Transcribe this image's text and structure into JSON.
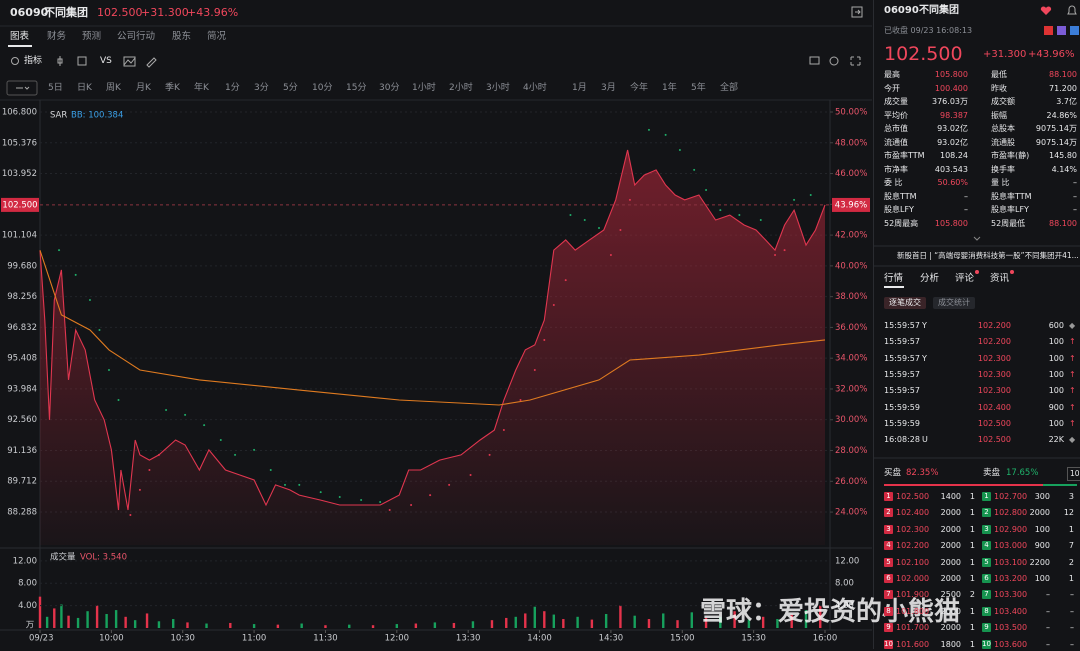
{
  "header": {
    "code": "06090",
    "name": "不同集团",
    "price": "102.500",
    "change": "+31.300",
    "change_pct": "+43.96%"
  },
  "tabs": [
    "图表",
    "财务",
    "预测",
    "公司行动",
    "股东",
    "简况"
  ],
  "toolbar": {
    "indicator": "指标",
    "compare": "VS"
  },
  "periods": [
    "5日",
    "日K",
    "周K",
    "月K",
    "季K",
    "年K",
    "1分",
    "3分",
    "5分",
    "10分",
    "15分",
    "30分",
    "1小时",
    "2小时",
    "3小时",
    "4小时",
    "1月",
    "3月",
    "今年",
    "1年",
    "5年",
    "全部"
  ],
  "chart_data": [
    {
      "type": "line",
      "indicator_labels": [
        "SAR",
        "BB: 100.384"
      ],
      "grid": true,
      "xlim": [
        0,
        330
      ],
      "ylim": [
        86.76,
        107.17
      ],
      "y2lim": [
        21.86,
        50.52
      ],
      "yticks": [
        {
          "value": 106.8,
          "label": "106.800"
        },
        {
          "value": 105.376,
          "label": "105.376"
        },
        {
          "value": 103.952,
          "label": "103.952"
        },
        {
          "value": 101.104,
          "label": "101.104"
        },
        {
          "value": 99.68,
          "label": "99.680"
        },
        {
          "value": 98.256,
          "label": "98.256"
        },
        {
          "value": 96.832,
          "label": "96.832"
        },
        {
          "value": 95.408,
          "label": "95.408"
        },
        {
          "value": 93.984,
          "label": "93.984"
        },
        {
          "value": 92.56,
          "label": "92.560"
        },
        {
          "value": 91.136,
          "label": "91.136"
        },
        {
          "value": 89.712,
          "label": "89.712"
        },
        {
          "value": 88.288,
          "label": "88.288"
        }
      ],
      "y2ticks": [
        {
          "value": 50,
          "label": "50.00%"
        },
        {
          "value": 48,
          "label": "48.00%"
        },
        {
          "value": 46,
          "label": "46.00%"
        },
        {
          "value": 44,
          "label": "44.00%"
        },
        {
          "value": 42,
          "label": "42.00%"
        },
        {
          "value": 40,
          "label": "40.00%"
        },
        {
          "value": 38,
          "label": "38.00%"
        },
        {
          "value": 36,
          "label": "36.00%"
        },
        {
          "value": 34,
          "label": "34.00%"
        },
        {
          "value": 32,
          "label": "32.00%"
        },
        {
          "value": 30,
          "label": "30.00%"
        },
        {
          "value": 28,
          "label": "28.00%"
        },
        {
          "value": 26,
          "label": "26.00%"
        },
        {
          "value": 24,
          "label": "24.00%"
        }
      ],
      "price_tag": {
        "value": 102.5,
        "label": "102.500"
      },
      "pct_tag": {
        "value": 43.96,
        "label": "43.96%"
      },
      "series": [
        {
          "style": "line",
          "area": true,
          "color": "#e0364f",
          "x": [
            0,
            2,
            4,
            6,
            9,
            12,
            15,
            19,
            23,
            27,
            30,
            33,
            34,
            37,
            40,
            42,
            46,
            50,
            57,
            61,
            67,
            71,
            78,
            84,
            90,
            95,
            99,
            105,
            109,
            118,
            126,
            135,
            143,
            151,
            155,
            160,
            168,
            177,
            185,
            191,
            195,
            200,
            204,
            208,
            212,
            216,
            221,
            225,
            231,
            237,
            242,
            244,
            247,
            250,
            254,
            259,
            263,
            267,
            271,
            277,
            284,
            290,
            296,
            301,
            305,
            309,
            313,
            317,
            322,
            326,
            330
          ],
          "values": [
            100.4,
            97.17,
            92.55,
            98.1,
            99.49,
            94.4,
            96.71,
            95.79,
            93.47,
            92.55,
            91.16,
            88.38,
            90.23,
            88.38,
            91.62,
            90.93,
            90.69,
            90.93,
            91.62,
            91.39,
            90.23,
            91.16,
            90.23,
            90.0,
            89.77,
            88.61,
            89.54,
            89.31,
            89.07,
            88.84,
            88.61,
            88.61,
            88.61,
            89.07,
            90.23,
            90.23,
            90.69,
            90.93,
            91.62,
            92.08,
            93.47,
            94.86,
            95.79,
            96.02,
            97.17,
            100.41,
            100.88,
            100.41,
            100.88,
            101.34,
            102.73,
            103.65,
            105.04,
            103.42,
            103.88,
            104.12,
            103.42,
            102.96,
            102.73,
            102.96,
            101.8,
            102.03,
            101.57,
            101.34,
            100.88,
            100.41,
            101.57,
            102.26,
            100.64,
            101.34,
            102.5
          ]
        },
        {
          "style": "line",
          "area": false,
          "color": "#e07b20",
          "x": [
            0,
            9,
            21,
            29,
            42,
            67,
            109,
            151,
            193,
            206,
            235,
            248,
            277,
            311,
            330
          ],
          "values": [
            100.4,
            97.41,
            96.71,
            95.79,
            94.86,
            94.4,
            93.93,
            93.47,
            93.24,
            93.47,
            94.4,
            95.32,
            95.55,
            96.02,
            96.25
          ]
        },
        {
          "style": "dot",
          "color": "#1fae6a",
          "x": [
            8,
            15,
            21,
            25,
            29,
            33,
            53,
            61,
            69,
            76,
            82,
            90,
            97,
            103,
            109,
            118,
            126,
            135,
            143,
            223,
            229,
            235,
            256,
            263,
            269,
            275,
            280,
            286,
            294,
            303,
            317,
            324
          ],
          "values": [
            100.41,
            99.26,
            98.1,
            96.71,
            94.86,
            93.47,
            93.01,
            92.78,
            92.31,
            91.62,
            90.93,
            91.16,
            90.23,
            89.54,
            89.54,
            89.21,
            88.98,
            88.84,
            88.75,
            102.03,
            101.8,
            101.43,
            105.97,
            105.74,
            105.04,
            104.12,
            103.19,
            102.26,
            102.03,
            101.8,
            102.73,
            102.96
          ]
        },
        {
          "style": "dot",
          "color": "#e0364f",
          "x": [
            38,
            42,
            46,
            50,
            147,
            156,
            164,
            172,
            181,
            189,
            195,
            202,
            208,
            212,
            216,
            221,
            240,
            244,
            248,
            309,
            313
          ],
          "values": [
            88.15,
            89.31,
            90.23,
            90.93,
            88.38,
            88.61,
            89.07,
            89.54,
            90.0,
            90.93,
            92.08,
            93.47,
            94.86,
            96.25,
            97.87,
            99.02,
            100.18,
            101.34,
            102.73,
            100.18,
            100.41
          ]
        }
      ]
    },
    {
      "type": "bar",
      "title": "成交量",
      "legend": "VOL: 3.540",
      "y_unit": "万",
      "xlim": [
        0,
        330
      ],
      "ylim": [
        0,
        13.4
      ],
      "yticks": [
        {
          "value": 12,
          "label": "12.00"
        },
        {
          "value": 8,
          "label": "8.00"
        },
        {
          "value": 4,
          "label": "4.00"
        }
      ],
      "xticks": [
        {
          "value": 0,
          "label": "09/23"
        },
        {
          "value": 30,
          "label": "10:00"
        },
        {
          "value": 60,
          "label": "10:30"
        },
        {
          "value": 90,
          "label": "11:00"
        },
        {
          "value": 120,
          "label": "11:30"
        },
        {
          "value": 150,
          "label": "12:00"
        },
        {
          "value": 180,
          "label": "13:30"
        },
        {
          "value": 210,
          "label": "14:00"
        },
        {
          "value": 240,
          "label": "14:30"
        },
        {
          "value": 270,
          "label": "15:00"
        },
        {
          "value": 300,
          "label": "15:30"
        },
        {
          "value": 330,
          "label": "16:00"
        }
      ],
      "x": [
        0,
        3,
        6,
        9,
        12,
        16,
        20,
        24,
        28,
        32,
        36,
        40,
        45,
        50,
        56,
        62,
        70,
        80,
        90,
        100,
        110,
        120,
        130,
        140,
        150,
        158,
        166,
        174,
        182,
        190,
        196,
        200,
        204,
        208,
        212,
        216,
        220,
        226,
        232,
        238,
        244,
        250,
        256,
        262,
        268,
        274,
        280,
        286,
        292,
        298,
        304,
        310,
        316,
        322,
        328
      ],
      "values": [
        5.6,
        2.0,
        3.5,
        4.2,
        2.2,
        1.8,
        3.0,
        4.0,
        2.5,
        3.2,
        2.0,
        1.4,
        2.6,
        1.2,
        1.6,
        1.0,
        0.8,
        0.9,
        0.7,
        0.6,
        0.8,
        0.5,
        0.6,
        0.5,
        0.7,
        0.8,
        1.0,
        0.9,
        1.2,
        1.4,
        1.8,
        2.0,
        2.6,
        3.8,
        3.0,
        2.4,
        1.6,
        2.0,
        1.5,
        2.5,
        4.0,
        2.2,
        1.6,
        2.6,
        1.4,
        2.8,
        1.8,
        2.0,
        3.0,
        1.5,
        2.0,
        1.6,
        2.4,
        3.2,
        4.0
      ],
      "colors": [
        "#e5334b",
        "#17a15d",
        "#e5334b",
        "#17a15d",
        "#e5334b",
        "#17a15d",
        "#17a15d",
        "#e5334b",
        "#17a15d",
        "#17a15d",
        "#e5334b",
        "#17a15d",
        "#e5334b",
        "#17a15d",
        "#17a15d",
        "#e5334b",
        "#17a15d",
        "#e5334b",
        "#17a15d",
        "#e5334b",
        "#17a15d",
        "#e5334b",
        "#17a15d",
        "#e5334b",
        "#17a15d",
        "#e5334b",
        "#17a15d",
        "#e5334b",
        "#17a15d",
        "#e5334b",
        "#e5334b",
        "#17a15d",
        "#e5334b",
        "#17a15d",
        "#e5334b",
        "#17a15d",
        "#e5334b",
        "#17a15d",
        "#e5334b",
        "#17a15d",
        "#e5334b",
        "#17a15d",
        "#e5334b",
        "#17a15d",
        "#e5334b",
        "#17a15d",
        "#e5334b",
        "#17a15d",
        "#e5334b",
        "#17a15d",
        "#e5334b",
        "#17a15d",
        "#e5334b",
        "#17a15d",
        "#e5334b"
      ]
    }
  ],
  "watermark": "雪球：爱投资的小熊猫",
  "quote_panel": {
    "code": "06090",
    "name": "不同集团",
    "status": "已收盘 09/23 16:08:13",
    "price": "102.500",
    "change": "+31.300",
    "change_pct": "+43.96%",
    "stats": [
      [
        "最高",
        "105.800",
        "最低",
        "88.100"
      ],
      [
        "今开",
        "100.400",
        "昨收",
        "71.200"
      ],
      [
        "成交量",
        "376.03万",
        "成交额",
        "3.7亿"
      ],
      [
        "平均价",
        "98.387",
        "振幅",
        "24.86%"
      ],
      [
        "总市值",
        "93.02亿",
        "总股本",
        "9075.14万"
      ],
      [
        "流通值",
        "93.02亿",
        "流通股",
        "9075.14万"
      ],
      [
        "市盈率TTM",
        "108.24",
        "市盈率(静)",
        "145.80"
      ],
      [
        "市净率",
        "403.543",
        "换手率",
        "4.14%"
      ],
      [
        "委 比",
        "50.60%",
        "量 比",
        "–"
      ],
      [
        "股息TTM",
        "–",
        "股息率TTM",
        "–"
      ],
      [
        "股息LFY",
        "–",
        "股息率LFY",
        "–"
      ],
      [
        "52周最高",
        "105.800",
        "52周最低",
        "88.100"
      ]
    ],
    "news": "新股首日 | “高端母婴消费科技第一股”不同集团开41...",
    "tabs": [
      "行情",
      "分析",
      "评论",
      "资讯"
    ],
    "subtabs": [
      "逐笔成交",
      "成交统计"
    ],
    "trades": [
      {
        "time": "15:59:57",
        "flag": "Y",
        "price": "102.200",
        "volume": "600"
      },
      {
        "time": "15:59:57",
        "price": "102.200",
        "volume": "100"
      },
      {
        "time": "15:59:57",
        "flag": "Y",
        "price": "102.300",
        "volume": "100"
      },
      {
        "time": "15:59:57",
        "price": "102.300",
        "volume": "100"
      },
      {
        "time": "15:59:57",
        "price": "102.300",
        "volume": "100"
      },
      {
        "time": "15:59:59",
        "price": "102.400",
        "volume": "900"
      },
      {
        "time": "15:59:59",
        "price": "102.500",
        "volume": "100"
      },
      {
        "time": "16:08:28",
        "flag": "U",
        "price": "102.500",
        "volume": "22K"
      }
    ],
    "order_book": {
      "buy_title": "买盘",
      "buy_ratio": {
        "value": 82.35,
        "label": "82.35%"
      },
      "sell_title": "卖盘",
      "sell_ratio": {
        "value": 17.65,
        "label": "17.65%"
      },
      "depth": "10",
      "bids": [
        {
          "level": "1",
          "price": "102.500",
          "volume": "1400",
          "orders": "1"
        },
        {
          "level": "2",
          "price": "102.400",
          "volume": "2000",
          "orders": "1"
        },
        {
          "level": "3",
          "price": "102.300",
          "volume": "2000",
          "orders": "1"
        },
        {
          "level": "4",
          "price": "102.200",
          "volume": "2000",
          "orders": "1"
        },
        {
          "level": "5",
          "price": "102.100",
          "volume": "2000",
          "orders": "1"
        },
        {
          "level": "6",
          "price": "102.000",
          "volume": "2000",
          "orders": "1"
        },
        {
          "level": "7",
          "price": "101.900",
          "volume": "2500",
          "orders": "2"
        },
        {
          "level": "8",
          "price": "101.800",
          "volume": "2000",
          "orders": "1"
        },
        {
          "level": "9",
          "price": "101.700",
          "volume": "2000",
          "orders": "1"
        },
        {
          "level": "10",
          "price": "101.600",
          "volume": "1800",
          "orders": "1"
        }
      ],
      "asks": [
        {
          "level": "1",
          "price": "102.700",
          "volume": "300",
          "orders": "3"
        },
        {
          "level": "2",
          "price": "102.800",
          "volume": "2000",
          "orders": "12"
        },
        {
          "level": "3",
          "price": "102.900",
          "volume": "100",
          "orders": "1"
        },
        {
          "level": "4",
          "price": "103.000",
          "volume": "900",
          "orders": "7"
        },
        {
          "level": "5",
          "price": "103.100",
          "volume": "2200",
          "orders": "2"
        },
        {
          "level": "6",
          "price": "103.200",
          "volume": "100",
          "orders": "1"
        },
        {
          "level": "7",
          "price": "103.300",
          "volume": "–",
          "orders": "–"
        },
        {
          "level": "8",
          "price": "103.400",
          "volume": "–",
          "orders": "–"
        },
        {
          "level": "9",
          "price": "103.500",
          "volume": "–",
          "orders": "–"
        },
        {
          "level": "10",
          "price": "103.600",
          "volume": "–",
          "orders": "–"
        }
      ]
    }
  }
}
